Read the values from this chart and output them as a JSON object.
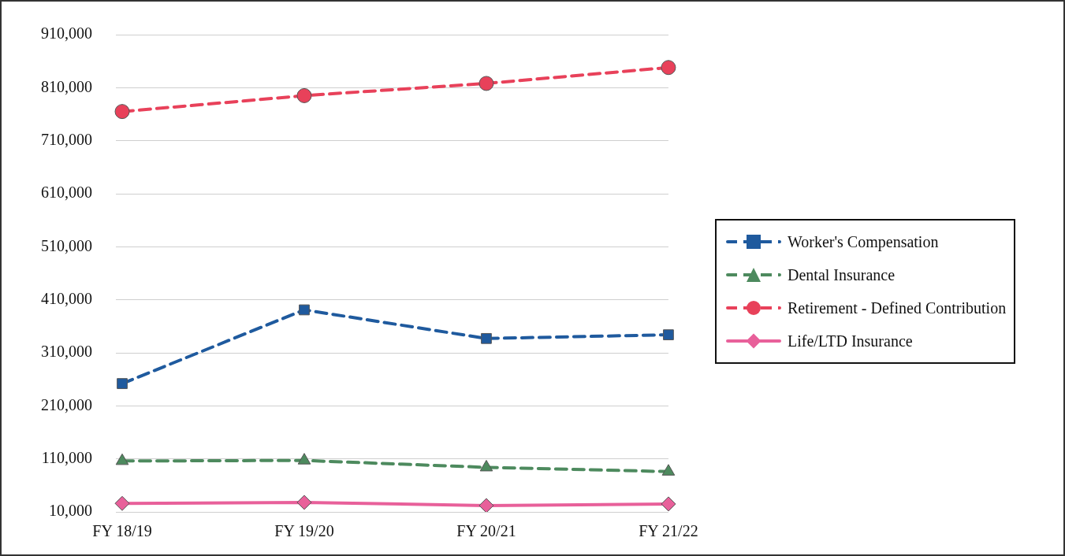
{
  "chart_data": {
    "type": "line",
    "categories": [
      "FY 18/19",
      "FY 19/20",
      "FY 20/21",
      "FY 21/22"
    ],
    "series": [
      {
        "name": "Worker's Compensation",
        "color": "#1f5a9e",
        "values": [
          252000,
          391000,
          337000,
          344000
        ],
        "marker": "square",
        "line_style": "dashed"
      },
      {
        "name": "Dental Insurance",
        "color": "#4d8a5e",
        "values": [
          106000,
          107000,
          94000,
          86000
        ],
        "marker": "triangle",
        "line_style": "dashed"
      },
      {
        "name": "Retirement - Defined Contribution",
        "color": "#e8415a",
        "values": [
          765000,
          795000,
          818000,
          848000
        ],
        "marker": "circle",
        "line_style": "dashed"
      },
      {
        "name": "Life/LTD Insurance",
        "color": "#e8609a",
        "values": [
          26000,
          28000,
          22000,
          25000
        ],
        "marker": "diamond",
        "line_style": "solid"
      }
    ],
    "ylim": [
      10000,
      910000
    ],
    "yticks": [
      {
        "value": 10000,
        "label": "10,000"
      },
      {
        "value": 110000,
        "label": "110,000"
      },
      {
        "value": 210000,
        "label": "210,000"
      },
      {
        "value": 310000,
        "label": "310,000"
      },
      {
        "value": 410000,
        "label": "410,000"
      },
      {
        "value": 510000,
        "label": "510,000"
      },
      {
        "value": 610000,
        "label": "610,000"
      },
      {
        "value": 710000,
        "label": "710,000"
      },
      {
        "value": 810000,
        "label": "810,000"
      },
      {
        "value": 910000,
        "label": "910,000"
      }
    ],
    "grid": "y",
    "legend": "right"
  }
}
